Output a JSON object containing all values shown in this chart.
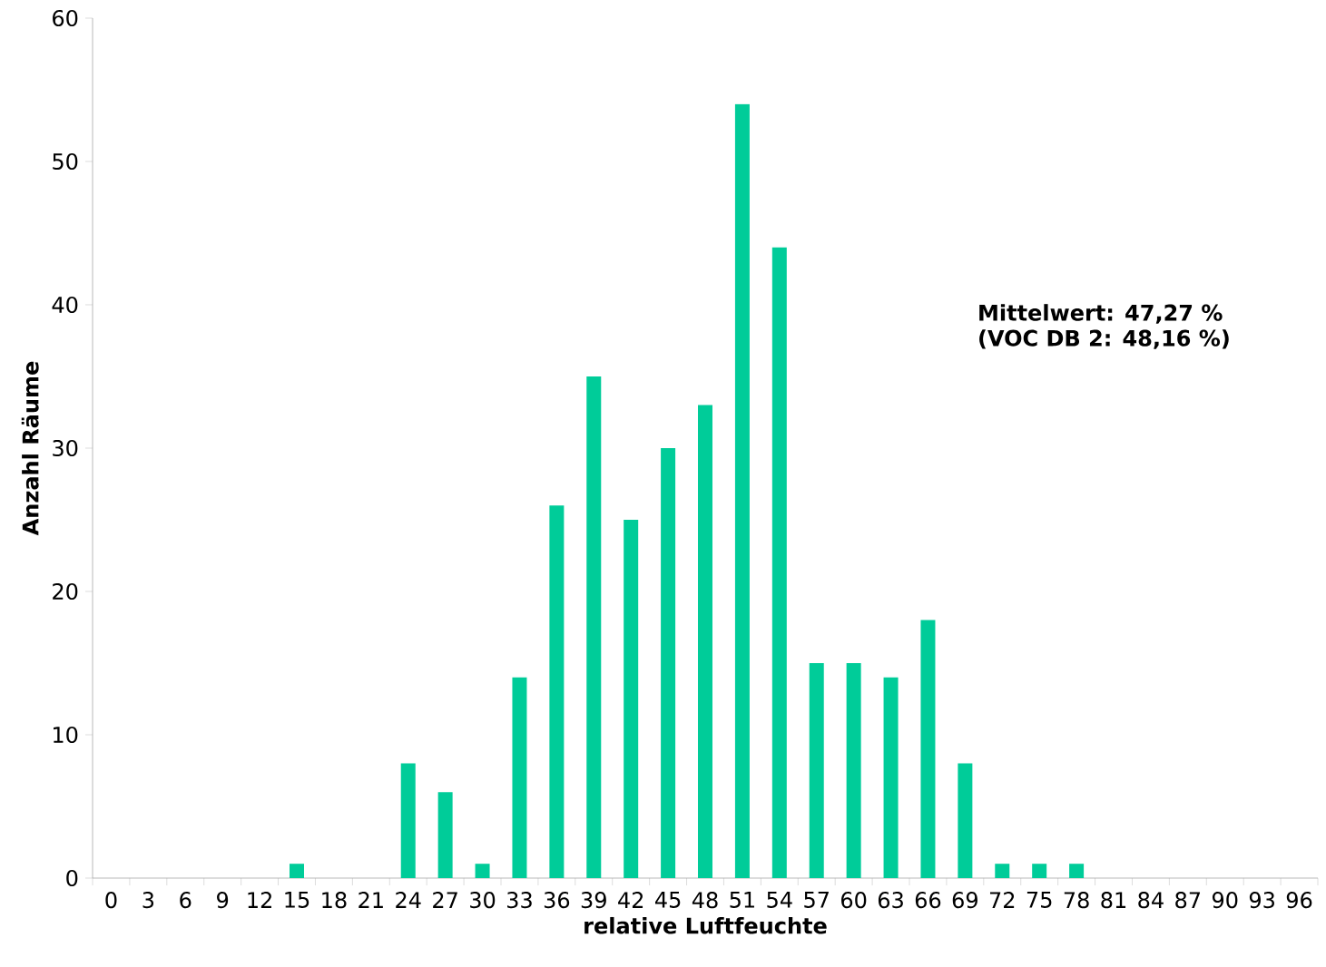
{
  "chart_data": {
    "type": "bar",
    "xlabel": "relative Luftfeuchte",
    "ylabel": "Anzahl Räume",
    "categories": [
      "0",
      "3",
      "6",
      "9",
      "12",
      "15",
      "18",
      "21",
      "24",
      "27",
      "30",
      "33",
      "36",
      "39",
      "42",
      "45",
      "48",
      "51",
      "54",
      "57",
      "60",
      "63",
      "66",
      "69",
      "72",
      "75",
      "78",
      "81",
      "84",
      "87",
      "90",
      "93",
      "96"
    ],
    "values": [
      0,
      0,
      0,
      0,
      0,
      1,
      0,
      0,
      8,
      6,
      1,
      14,
      26,
      35,
      25,
      30,
      33,
      54,
      44,
      15,
      15,
      14,
      18,
      8,
      1,
      1,
      1,
      0,
      0,
      0,
      0,
      0,
      0
    ],
    "color": "#00cc99",
    "ylim": [
      0,
      60
    ],
    "yticks": [
      0,
      10,
      20,
      30,
      40,
      50,
      60
    ],
    "annotations": [
      "Mittelwert: 47,27 %",
      "(VOC DB 2: 48,16 %)"
    ]
  }
}
